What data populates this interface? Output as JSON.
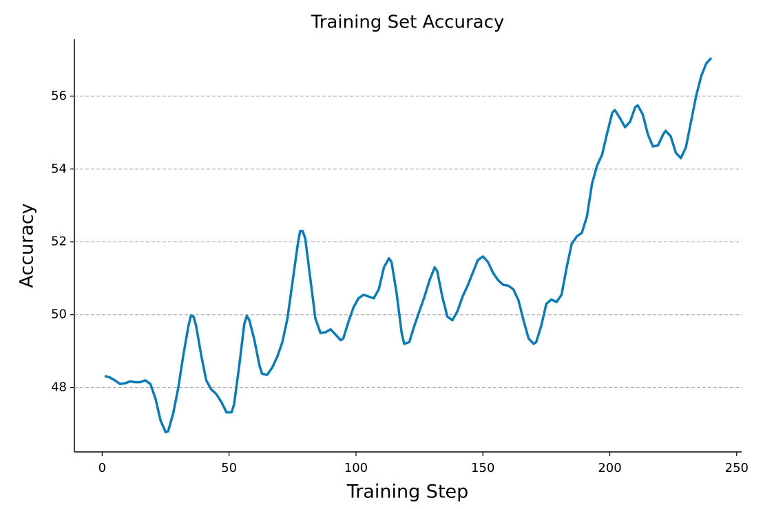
{
  "chart_data": {
    "type": "line",
    "title": "Training Set Accuracy",
    "x_label": "Training Step",
    "y_label": "Accuracy",
    "grid": true,
    "xlim": [
      -10.95,
      251.95
    ],
    "xticks": [
      0,
      50,
      100,
      150,
      200,
      250
    ],
    "ylim": [
      46.235,
      57.565
    ],
    "yticks": [
      48,
      50,
      52,
      54,
      56
    ],
    "series": [
      {
        "name": "Accuracy",
        "color": "#0b7bb8",
        "x": [
          1,
          3,
          5,
          7,
          9,
          11,
          13,
          15,
          17,
          19,
          21,
          23,
          25,
          26,
          28,
          30,
          32,
          34,
          35,
          36,
          37,
          39,
          41,
          43,
          45,
          47,
          49,
          51,
          52,
          54,
          56,
          57,
          58,
          60,
          62,
          63,
          65,
          67,
          69,
          71,
          73,
          75,
          77,
          78,
          79,
          80,
          82,
          84,
          86,
          88,
          90,
          92,
          94,
          95,
          97,
          99,
          101,
          103,
          105,
          107,
          109,
          111,
          113,
          114,
          116,
          118,
          119,
          121,
          123,
          125,
          127,
          129,
          131,
          132,
          134,
          136,
          138,
          140,
          142,
          144,
          146,
          148,
          150,
          152,
          154,
          156,
          158,
          160,
          162,
          164,
          166,
          168,
          170,
          171,
          173,
          175,
          177,
          179,
          181,
          183,
          185,
          187,
          189,
          191,
          193,
          195,
          197,
          199,
          201,
          202,
          204,
          206,
          208,
          210,
          211,
          213,
          215,
          217,
          219,
          221,
          222,
          224,
          226,
          228,
          230,
          232,
          234,
          236,
          238,
          240
        ],
        "values": [
          48.32,
          48.28,
          48.2,
          48.1,
          48.12,
          48.17,
          48.15,
          48.15,
          48.2,
          48.1,
          47.7,
          47.1,
          46.78,
          46.8,
          47.3,
          48.0,
          48.9,
          49.7,
          49.98,
          49.95,
          49.7,
          48.9,
          48.2,
          47.95,
          47.82,
          47.6,
          47.32,
          47.32,
          47.55,
          48.6,
          49.75,
          49.97,
          49.85,
          49.3,
          48.6,
          48.38,
          48.35,
          48.55,
          48.85,
          49.25,
          49.9,
          50.9,
          51.9,
          52.3,
          52.3,
          52.1,
          51.0,
          49.9,
          49.5,
          49.52,
          49.6,
          49.45,
          49.3,
          49.35,
          49.8,
          50.2,
          50.45,
          50.55,
          50.5,
          50.45,
          50.7,
          51.3,
          51.55,
          51.45,
          50.6,
          49.5,
          49.2,
          49.25,
          49.7,
          50.1,
          50.5,
          50.95,
          51.3,
          51.2,
          50.5,
          49.95,
          49.85,
          50.1,
          50.5,
          50.8,
          51.15,
          51.5,
          51.6,
          51.45,
          51.15,
          50.95,
          50.82,
          50.8,
          50.7,
          50.4,
          49.85,
          49.35,
          49.2,
          49.25,
          49.7,
          50.3,
          50.42,
          50.35,
          50.55,
          51.3,
          51.95,
          52.15,
          52.25,
          52.7,
          53.6,
          54.1,
          54.4,
          55.0,
          55.55,
          55.62,
          55.4,
          55.15,
          55.3,
          55.7,
          55.75,
          55.5,
          54.95,
          54.62,
          54.65,
          54.95,
          55.05,
          54.9,
          54.45,
          54.3,
          54.6,
          55.3,
          56.0,
          56.55,
          56.9,
          57.05
        ]
      }
    ]
  }
}
